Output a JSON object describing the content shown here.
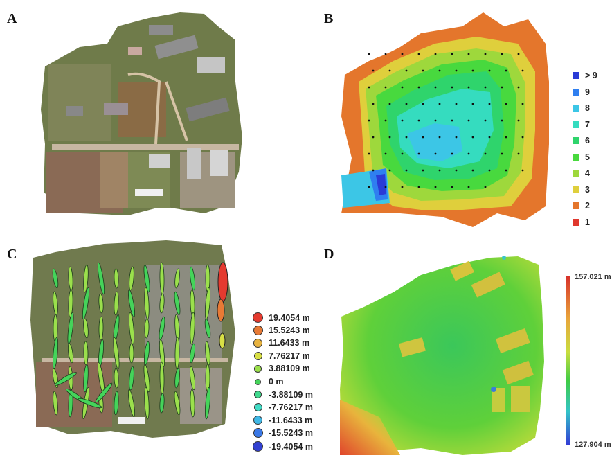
{
  "panels": {
    "a": {
      "letter": "A"
    },
    "b": {
      "letter": "B"
    },
    "c": {
      "letter": "C"
    },
    "d": {
      "letter": "D"
    }
  },
  "overlap_legend": [
    {
      "label": "> 9",
      "color": "#2a3bd6"
    },
    {
      "label": "9",
      "color": "#2f7ff0"
    },
    {
      "label": "8",
      "color": "#3cc6e6"
    },
    {
      "label": "7",
      "color": "#35dcbf"
    },
    {
      "label": "6",
      "color": "#2fd46c"
    },
    {
      "label": "5",
      "color": "#48d93e"
    },
    {
      "label": "4",
      "color": "#9ed83c"
    },
    {
      "label": "3",
      "color": "#dfcf3c"
    },
    {
      "label": "2",
      "color": "#e4762c"
    },
    {
      "label": "1",
      "color": "#e0382e"
    }
  ],
  "error_legend": [
    {
      "label": "19.4054 m",
      "color": "#e43a2f"
    },
    {
      "label": "15.5243 m",
      "color": "#e87a35"
    },
    {
      "label": "11.6433 m",
      "color": "#e8b340"
    },
    {
      "label": "7.76217 m",
      "color": "#d8df45"
    },
    {
      "label": "3.88109 m",
      "color": "#9be04c"
    },
    {
      "label": "0 m",
      "color": "#45d45a"
    },
    {
      "label": "-3.88109 m",
      "color": "#40d98d"
    },
    {
      "label": "-7.76217 m",
      "color": "#42dcc6"
    },
    {
      "label": "-11.6433 m",
      "color": "#3fb8e6"
    },
    {
      "label": "-15.5243 m",
      "color": "#3a78e6"
    },
    {
      "label": "-19.4054 m",
      "color": "#3240d0"
    }
  ],
  "dsm_colorbar": {
    "max_label": "157.021 m",
    "min_label": "127.904 m"
  }
}
